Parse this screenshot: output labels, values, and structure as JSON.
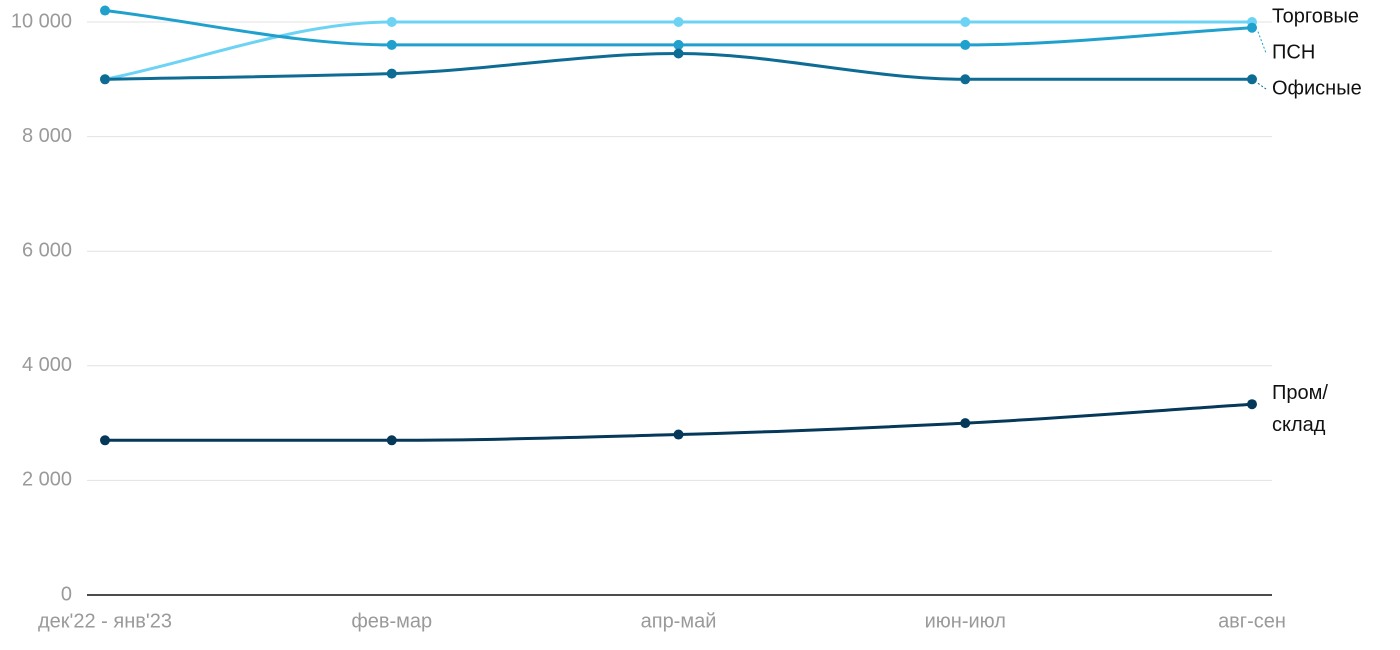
{
  "chart_data": {
    "type": "line",
    "categories": [
      "дек'22 - янв'23",
      "фев-мар",
      "апр-май",
      "июн-июл",
      "авг-сен"
    ],
    "series": [
      {
        "name": "Торговые",
        "color": "#6dd3f4",
        "values": [
          9000,
          10000,
          10000,
          10000,
          10000
        ]
      },
      {
        "name": "ПСН",
        "color": "#20a0cd",
        "values": [
          10200,
          9600,
          9600,
          9600,
          9900
        ]
      },
      {
        "name": "Офисные",
        "color": "#0e6c94",
        "values": [
          9000,
          9100,
          9450,
          9000,
          9000
        ]
      },
      {
        "name": "Пром/склад",
        "color": "#053859",
        "values": [
          2700,
          2700,
          2800,
          3000,
          3330
        ]
      }
    ],
    "ylim": [
      0,
      10000
    ],
    "yticks": [
      0,
      {
        "value": 2000,
        "label": "2 000"
      },
      {
        "value": 4000,
        "label": "4 000"
      },
      {
        "value": 6000,
        "label": "6 000"
      },
      {
        "value": 8000,
        "label": "8 000"
      },
      {
        "value": 10000,
        "label": "10 000"
      }
    ],
    "grid": true
  }
}
